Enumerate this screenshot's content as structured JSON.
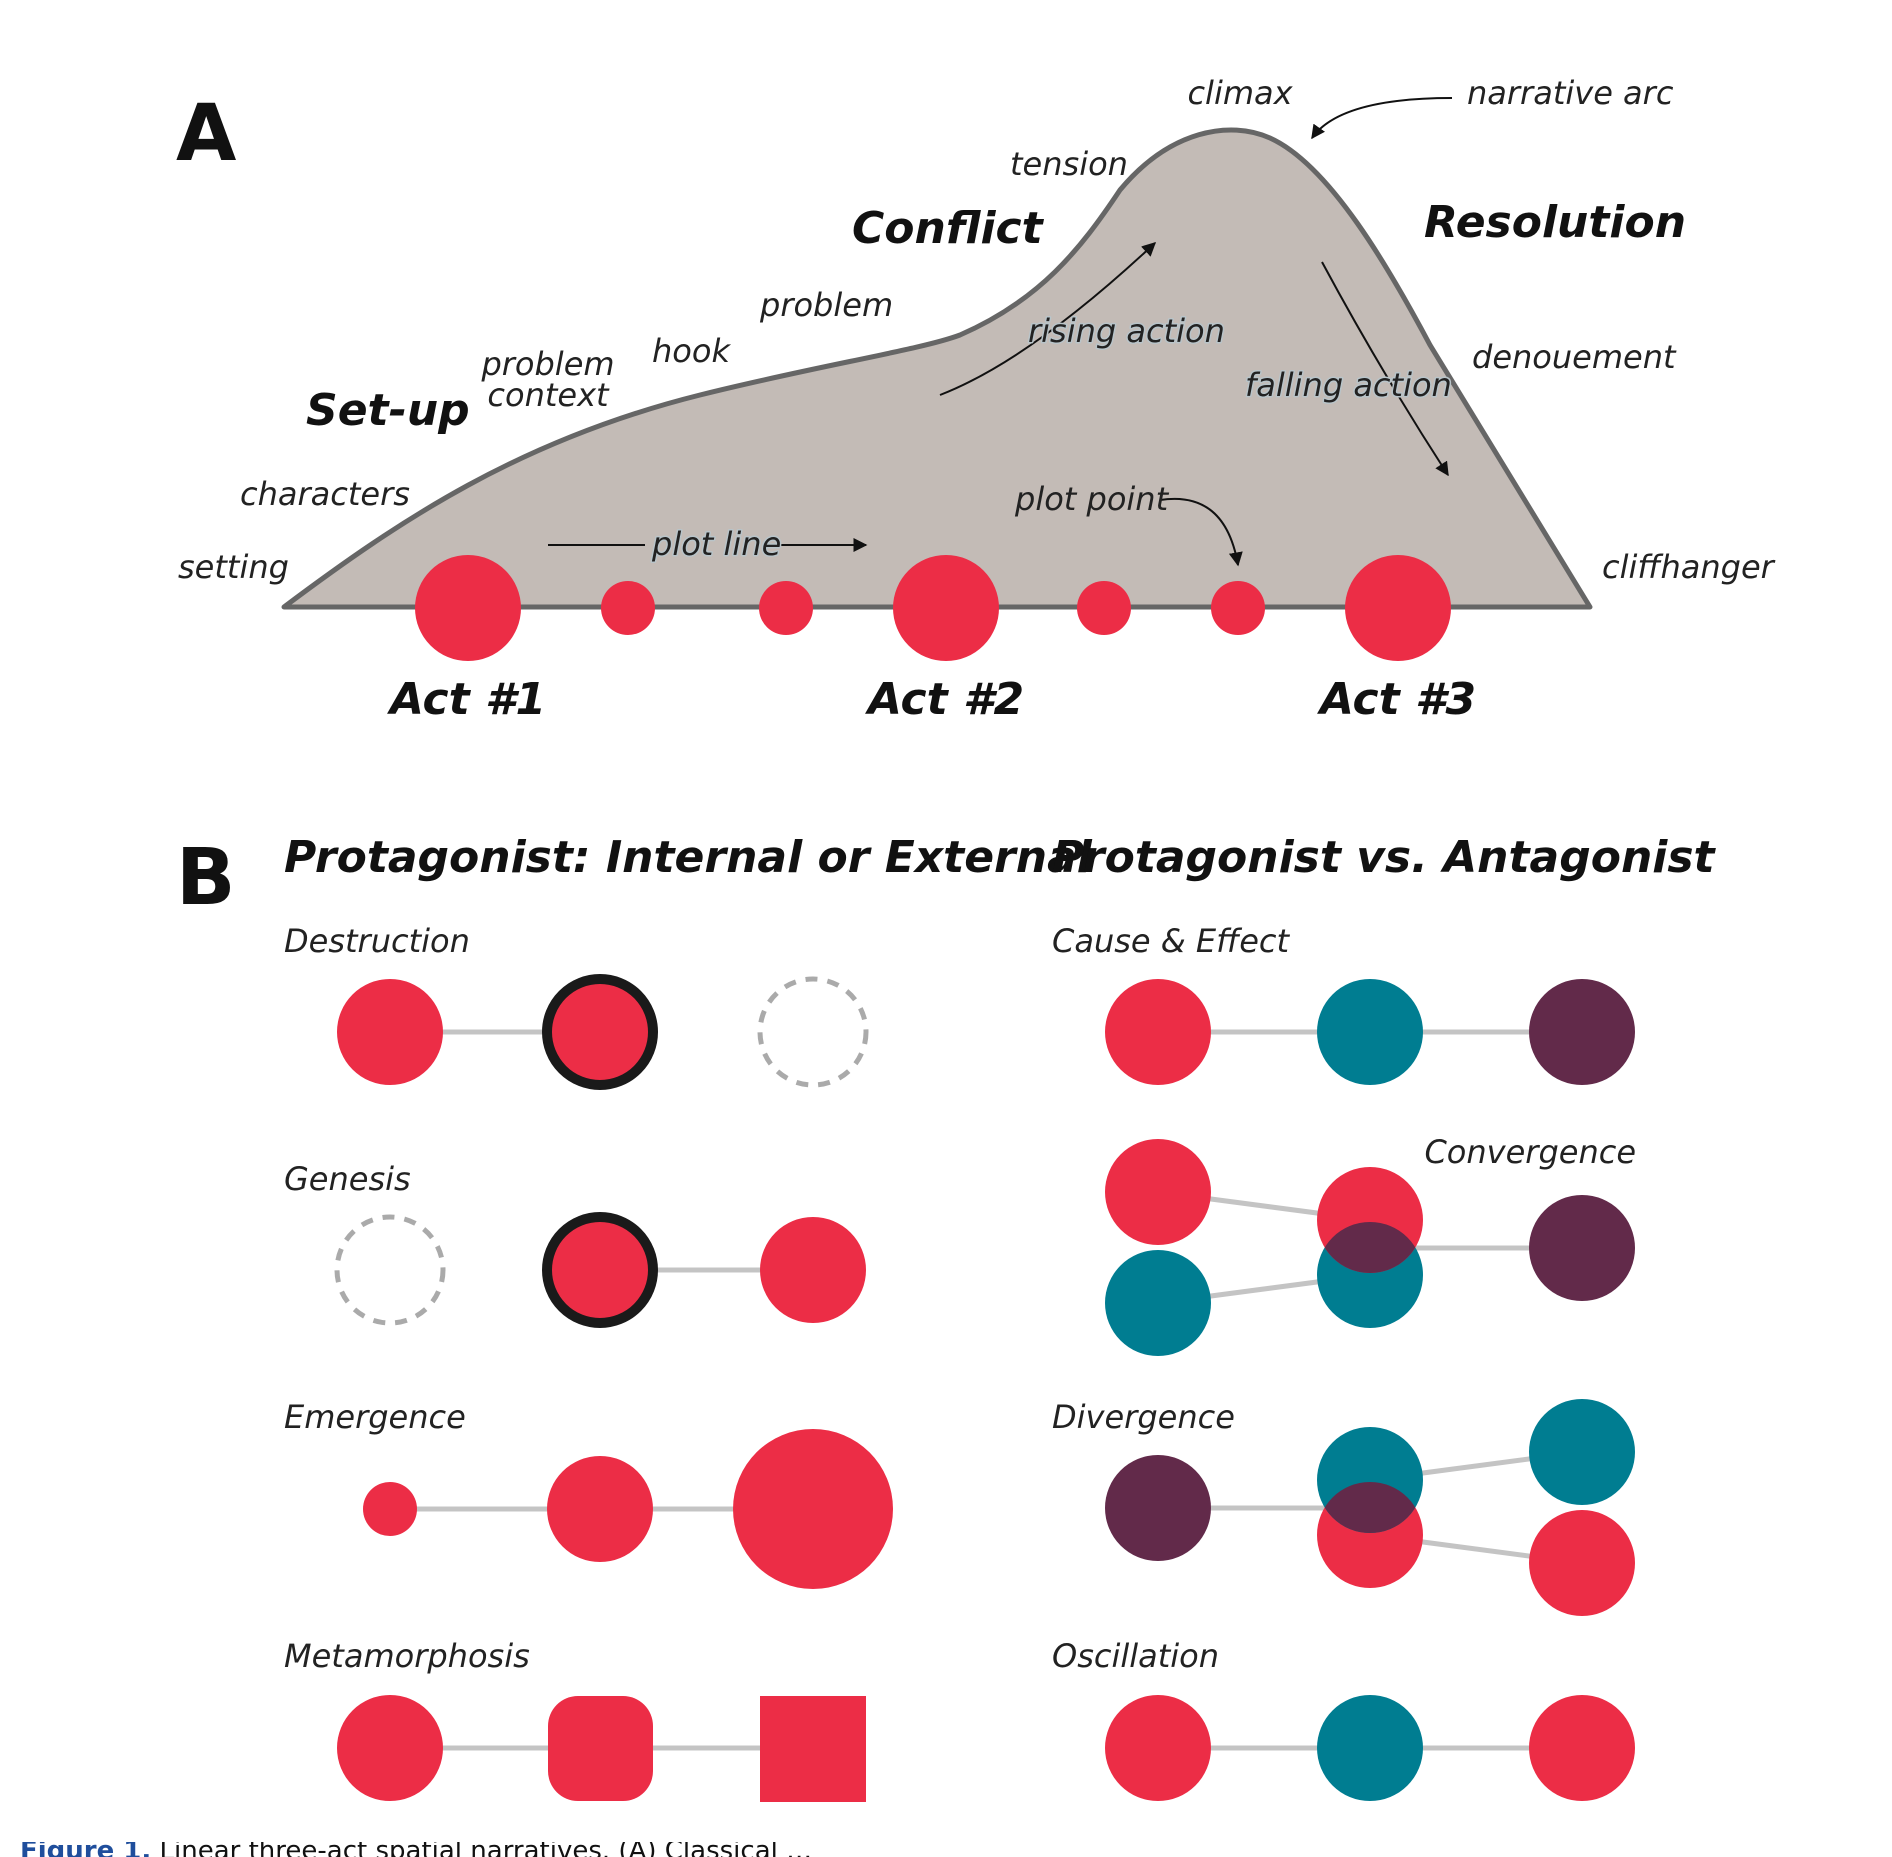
{
  "colors": {
    "red": "#ec2d46",
    "teal": "#007d91",
    "plum": "#622a4a",
    "arc_fill": "#c3bbb6",
    "arc_stroke": "#666666",
    "connector": "#c4c4c4",
    "outline": "#1a1a1a",
    "dashed": "#aaaaaa"
  },
  "panel_a": {
    "letter": "A",
    "section_labels": {
      "setup": "Set-up",
      "conflict": "Conflict",
      "resolution": "Resolution"
    },
    "annotations": {
      "climax": "climax",
      "narrative_arc": "narrative arc",
      "tension": "tension",
      "problem": "problem",
      "hook": "hook",
      "problem_context_1": "problem",
      "problem_context_2": "context",
      "characters": "characters",
      "setting": "setting",
      "rising_action": "rising action",
      "falling_action": "falling action",
      "denouement": "denouement",
      "plot_point": "plot point",
      "plot_line": "plot line",
      "cliffhanger": "cliffhanger"
    },
    "acts": [
      "Act #1",
      "Act #2",
      "Act #3"
    ]
  },
  "panel_b": {
    "letter": "B",
    "left_title": "Protagonist: Internal or External",
    "right_title": "Protagonist vs. Antagonist",
    "left_patterns": [
      "Destruction",
      "Genesis",
      "Emergence",
      "Metamorphosis"
    ],
    "right_patterns": [
      "Cause & Effect",
      "Convergence",
      "Divergence",
      "Oscillation"
    ]
  },
  "caption": {
    "fig_no": "Figure 1.",
    "text": "Linear three-act spatial narratives. (A) Classical …"
  }
}
